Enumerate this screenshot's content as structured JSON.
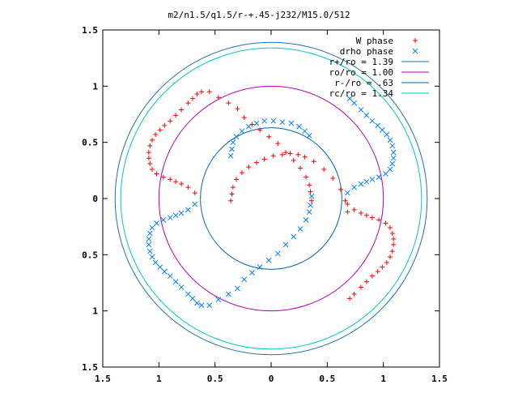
{
  "colors": {
    "w_phase": "#ff0000",
    "drho_phase": "#0080ff",
    "r_plus": "#1e70b4",
    "ro": "#b400b4",
    "r_minus": "#0064b4",
    "rc": "#00c8c8",
    "axis": "#000000"
  },
  "chart_data": {
    "type": "scatter",
    "title": "m2/n1.5/q1.5/r-+.45-j232/M15.0/512",
    "xlabel": "",
    "ylabel": "",
    "xlim": [
      -1.5,
      1.5
    ],
    "ylim": [
      -1.5,
      1.5
    ],
    "grid": false,
    "legend_position": "top-right",
    "x_ticks": [
      {
        "value": -1.5,
        "label": "1.5"
      },
      {
        "value": -1.0,
        "label": "1"
      },
      {
        "value": -0.5,
        "label": "0.5"
      },
      {
        "value": 0.0,
        "label": "0"
      },
      {
        "value": 0.5,
        "label": "0.5"
      },
      {
        "value": 1.0,
        "label": "1"
      },
      {
        "value": 1.5,
        "label": "1.5"
      }
    ],
    "y_ticks": [
      {
        "value": 1.5,
        "label": "1.5"
      },
      {
        "value": 1.0,
        "label": "1"
      },
      {
        "value": 0.5,
        "label": "0.5"
      },
      {
        "value": 0.0,
        "label": "0"
      },
      {
        "value": -0.5,
        "label": "0.5"
      },
      {
        "value": -1.0,
        "label": "1"
      },
      {
        "value": -1.5,
        "label": "1.5"
      }
    ],
    "circles": [
      {
        "name": "r+/ro = 1.39",
        "radius": 1.39,
        "color": "#1e70b4"
      },
      {
        "name": "ro/ro = 1.00",
        "radius": 1.0,
        "color": "#b400b4"
      },
      {
        "name": "r-/ro = .63",
        "radius": 0.63,
        "color": "#0064b4"
      },
      {
        "name": "rc/ro = 1.34",
        "radius": 1.34,
        "color": "#00c8c8"
      }
    ],
    "series": [
      {
        "name": "W phase",
        "marker": "plus",
        "color": "#ff0000",
        "x": [
          0.68,
          0.66,
          0.62,
          0.55,
          0.47,
          0.38,
          0.3,
          0.24,
          0.17,
          0.1,
          0.02,
          -0.06,
          -0.13,
          -0.2,
          -0.26,
          -0.31,
          -0.34,
          -0.35,
          -0.36,
          -0.68,
          -0.74,
          -0.8,
          -0.85,
          -0.9,
          -0.96,
          -1.02,
          -1.06,
          -1.08,
          -1.09,
          -1.09,
          -1.08,
          -1.06,
          -1.03,
          -0.99,
          -0.95,
          -0.9,
          -0.85,
          -0.8,
          -0.74,
          -0.7,
          -0.66,
          -0.62,
          -0.55,
          -0.47,
          -0.38,
          -0.3,
          -0.24,
          -0.17,
          -0.1,
          -0.02,
          0.06,
          0.13,
          0.2,
          0.26,
          0.31,
          0.34,
          0.35,
          0.36,
          0.68,
          0.74,
          0.8,
          0.85,
          0.9,
          0.96,
          1.02,
          1.06,
          1.08,
          1.09,
          1.09,
          1.08,
          1.06,
          1.03,
          0.99,
          0.95,
          0.9,
          0.85,
          0.8,
          0.74,
          0.7
        ],
        "y": [
          -0.12,
          -0.02,
          0.08,
          0.18,
          0.26,
          0.33,
          0.37,
          0.39,
          0.4,
          0.39,
          0.38,
          0.35,
          0.32,
          0.28,
          0.23,
          0.17,
          0.1,
          0.04,
          -0.02,
          0.05,
          0.1,
          0.13,
          0.15,
          0.17,
          0.19,
          0.22,
          0.26,
          0.31,
          0.36,
          0.41,
          0.47,
          0.52,
          0.57,
          0.61,
          0.65,
          0.69,
          0.74,
          0.79,
          0.85,
          0.89,
          0.93,
          0.95,
          0.95,
          0.9,
          0.85,
          0.8,
          0.72,
          0.66,
          0.61,
          0.55,
          0.49,
          0.41,
          0.34,
          0.27,
          0.19,
          0.12,
          0.06,
          -0.02,
          -0.05,
          -0.1,
          -0.13,
          -0.15,
          -0.17,
          -0.19,
          -0.22,
          -0.26,
          -0.31,
          -0.36,
          -0.41,
          -0.47,
          -0.52,
          -0.57,
          -0.61,
          -0.65,
          -0.69,
          -0.74,
          -0.79,
          -0.85,
          -0.89
        ]
      },
      {
        "name": "drho phase",
        "marker": "cross",
        "color": "#0080ff",
        "x": [
          0.34,
          0.3,
          0.25,
          0.18,
          0.1,
          0.02,
          -0.06,
          -0.13,
          -0.2,
          -0.26,
          -0.31,
          -0.34,
          -0.35,
          -0.36,
          -0.68,
          -0.74,
          -0.8,
          -0.85,
          -0.9,
          -0.96,
          -1.02,
          -1.06,
          -1.08,
          -1.09,
          -1.09,
          -1.08,
          -1.06,
          -1.03,
          -0.99,
          -0.95,
          -0.9,
          -0.85,
          -0.8,
          -0.74,
          -0.7,
          -0.66,
          -0.62,
          -0.55,
          -0.47,
          -0.38,
          -0.3,
          -0.24,
          -0.17,
          -0.1,
          -0.02,
          0.06,
          0.13,
          0.2,
          0.26,
          0.31,
          0.34,
          0.35,
          0.36,
          0.68,
          0.74,
          0.8,
          0.85,
          0.9,
          0.96,
          1.02,
          1.06,
          1.08,
          1.09,
          1.09,
          1.08,
          1.06,
          1.03,
          0.99,
          0.95,
          0.9,
          0.85,
          0.8,
          0.74,
          0.7
        ],
        "y": [
          0.56,
          0.6,
          0.64,
          0.67,
          0.68,
          0.69,
          0.69,
          0.67,
          0.64,
          0.6,
          0.55,
          0.5,
          0.44,
          0.38,
          -0.05,
          -0.1,
          -0.13,
          -0.15,
          -0.17,
          -0.19,
          -0.22,
          -0.26,
          -0.31,
          -0.36,
          -0.41,
          -0.47,
          -0.52,
          -0.57,
          -0.61,
          -0.65,
          -0.69,
          -0.74,
          -0.79,
          -0.85,
          -0.89,
          -0.93,
          -0.95,
          -0.95,
          -0.9,
          -0.85,
          -0.8,
          -0.72,
          -0.66,
          -0.61,
          -0.55,
          -0.49,
          -0.41,
          -0.34,
          -0.27,
          -0.19,
          -0.12,
          -0.06,
          0.02,
          0.05,
          0.1,
          0.13,
          0.15,
          0.17,
          0.19,
          0.22,
          0.26,
          0.31,
          0.36,
          0.41,
          0.47,
          0.52,
          0.57,
          0.61,
          0.65,
          0.69,
          0.74,
          0.79,
          0.85,
          0.89
        ]
      }
    ]
  }
}
